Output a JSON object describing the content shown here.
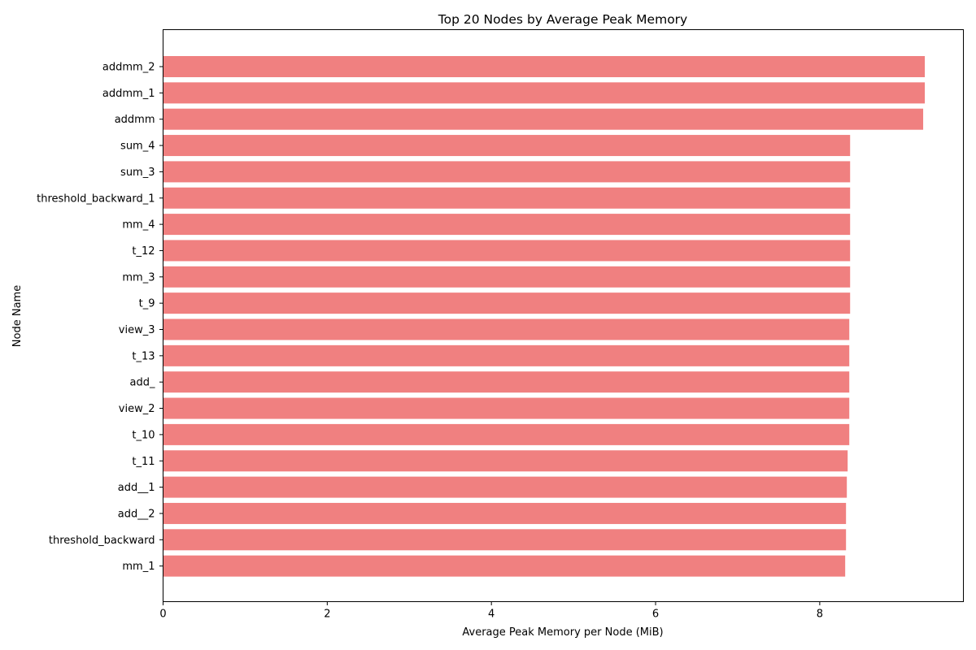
{
  "chart_data": {
    "type": "bar",
    "orientation": "horizontal",
    "title": "Top 20 Nodes by Average Peak Memory",
    "xlabel": "Average Peak Memory per Node (MiB)",
    "ylabel": "Node Name",
    "xlim": [
      0,
      9.75
    ],
    "xticks": [
      0,
      2,
      4,
      6,
      8
    ],
    "grid": false,
    "bar_color": "#f08080",
    "categories": [
      "addmm_2",
      "addmm_1",
      "addmm",
      "sum_4",
      "sum_3",
      "threshold_backward_1",
      "mm_4",
      "t_12",
      "mm_3",
      "t_9",
      "view_3",
      "t_13",
      "add_",
      "view_2",
      "t_10",
      "t_11",
      "add__1",
      "add__2",
      "threshold_backward",
      "mm_1"
    ],
    "values": [
      9.28,
      9.28,
      9.26,
      8.37,
      8.37,
      8.37,
      8.37,
      8.37,
      8.37,
      8.37,
      8.36,
      8.36,
      8.36,
      8.36,
      8.36,
      8.34,
      8.33,
      8.32,
      8.32,
      8.31
    ]
  }
}
